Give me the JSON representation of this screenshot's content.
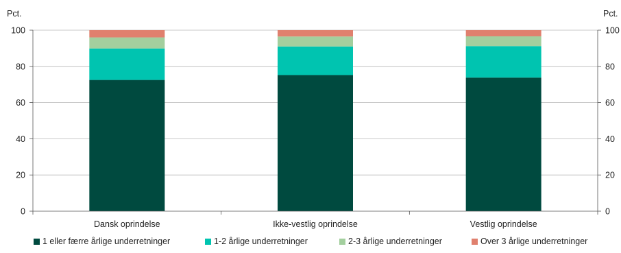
{
  "chart_data": {
    "type": "bar",
    "stacked": true,
    "categories": [
      "Dansk oprindelse",
      "Ikke-vestlig oprindelse",
      "Vestlig oprindelse"
    ],
    "series": [
      {
        "name": "1 eller færre årlige underretninger",
        "color": "#004a3f",
        "values": [
          72.5,
          75.2,
          73.8
        ]
      },
      {
        "name": "1-2 årlige underretninger",
        "color": "#00c4b0",
        "values": [
          17.4,
          15.8,
          17.4
        ]
      },
      {
        "name": "2-3 årlige underretninger",
        "color": "#a3cf9e",
        "values": [
          6.1,
          5.5,
          5.4
        ]
      },
      {
        "name": "Over 3 årlige underretninger",
        "color": "#e0806e",
        "values": [
          4.0,
          3.5,
          3.4
        ]
      }
    ],
    "ylabel_left": "Pct.",
    "ylabel_right": "Pct.",
    "ylim": [
      0,
      100
    ],
    "yticks": [
      "0",
      "20",
      "40",
      "60",
      "80",
      "100"
    ],
    "grid": true,
    "legend_position": "bottom"
  }
}
